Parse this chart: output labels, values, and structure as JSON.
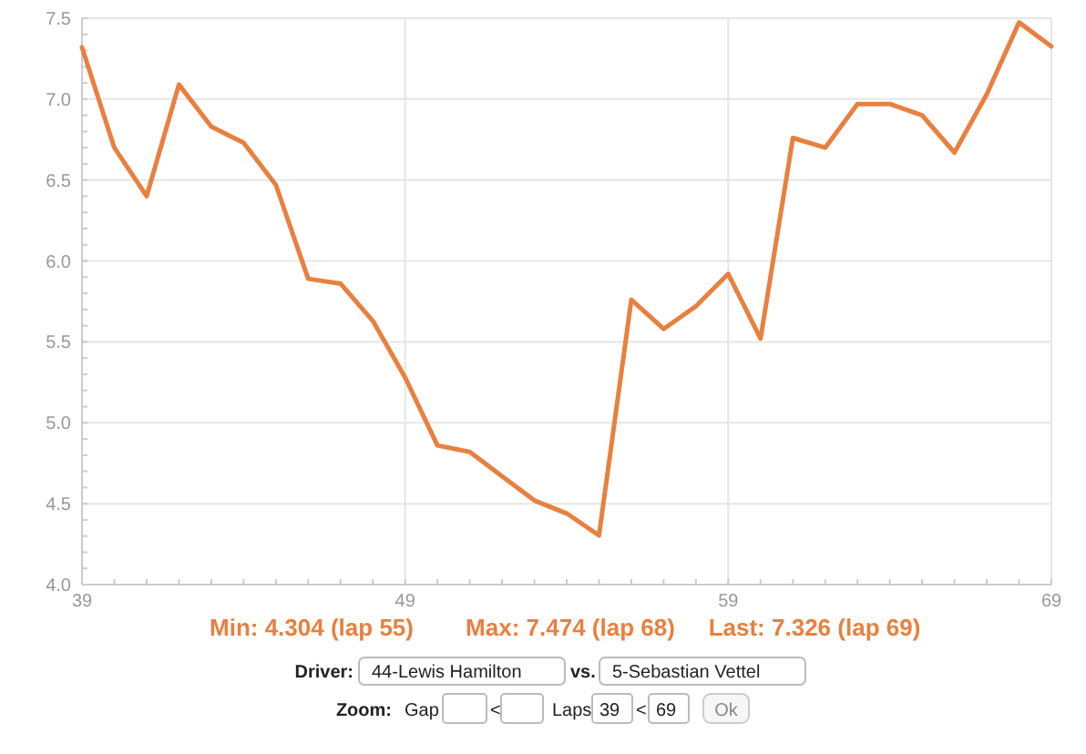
{
  "chart_data": {
    "type": "line",
    "x": [
      39,
      40,
      41,
      42,
      43,
      44,
      45,
      46,
      47,
      48,
      49,
      50,
      51,
      52,
      53,
      54,
      55,
      56,
      57,
      58,
      59,
      60,
      61,
      62,
      63,
      64,
      65,
      66,
      67,
      68,
      69
    ],
    "series": [
      {
        "color": "#e8803f",
        "values": [
          7.32,
          6.7,
          6.4,
          7.09,
          6.83,
          6.73,
          6.47,
          5.89,
          5.86,
          5.63,
          5.28,
          4.86,
          4.82,
          4.67,
          4.52,
          4.44,
          4.304,
          5.76,
          5.58,
          5.72,
          5.92,
          5.52,
          6.76,
          6.7,
          6.97,
          6.97,
          6.9,
          6.67,
          7.03,
          7.474,
          7.326
        ]
      }
    ],
    "xlim": [
      39,
      69
    ],
    "xticks": [
      39,
      49,
      59,
      69
    ],
    "ylim": [
      4,
      7.5
    ],
    "yticks": [
      {
        "value": 4,
        "label": "4.0"
      },
      {
        "value": 4.5,
        "label": "4.5"
      },
      {
        "value": 5,
        "label": "5.0"
      },
      {
        "value": 5.5,
        "label": "5.5"
      },
      {
        "value": 6,
        "label": "6.0"
      },
      {
        "value": 6.5,
        "label": "6.5"
      },
      {
        "value": 7,
        "label": "7.0"
      },
      {
        "value": 7.5,
        "label": "7.5"
      }
    ],
    "grid": true,
    "marker": "none",
    "line_style": "solid",
    "annotations": [
      "Min: 4.304 (lap 55)",
      "Max: 7.474 (lap 68)",
      "Last: 7.326 (lap 69)",
      "Driver:",
      "44-Lewis Hamilton",
      "vs.",
      "5-Sebastian Vettel",
      "Zoom:",
      "Gap",
      "<",
      "Laps",
      "39",
      "<",
      "69",
      "Ok"
    ]
  }
}
